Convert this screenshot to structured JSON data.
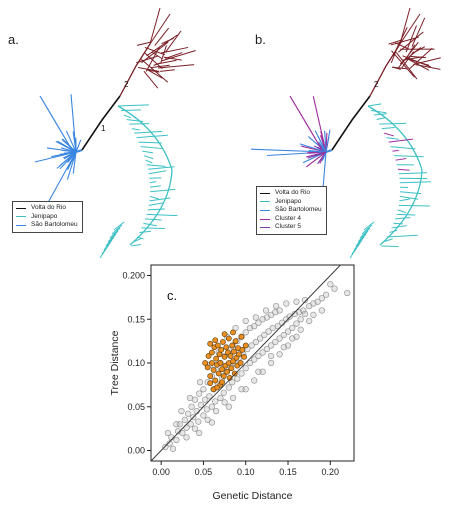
{
  "colors": {
    "volta": "#111111",
    "jenipapo": "#3cc0c4",
    "sao": "#3a86e0",
    "cluster4": "#a02d9c",
    "cluster5": "#7b3aa8",
    "maroon": "#7a1f26",
    "points_gray": "#b9b9b9",
    "points_orange": "#e98a17"
  },
  "panel_a": {
    "label": "a.",
    "node_labels": [
      "1",
      "2"
    ],
    "legend": [
      {
        "label": "Volta do Rio",
        "color_key": "volta"
      },
      {
        "label": "Jenipapo",
        "color_key": "jenipapo"
      },
      {
        "label": "São Bartolomeu",
        "color_key": "sao"
      }
    ]
  },
  "panel_b": {
    "label": "b.",
    "node_labels": [
      "2"
    ],
    "legend": [
      {
        "label": "Volta do Rio",
        "color_key": "volta"
      },
      {
        "label": "Jenipapo",
        "color_key": "jenipapo"
      },
      {
        "label": "São Bartolomeu",
        "color_key": "sao"
      },
      {
        "label": "Cluster 4",
        "color_key": "cluster4"
      },
      {
        "label": "Cluster 5",
        "color_key": "cluster5"
      }
    ]
  },
  "chart_data": {
    "type": "scatter",
    "panel_label": "c.",
    "xlabel": "Genetic Distance",
    "ylabel": "Tree Distance",
    "xlim": [
      -0.012,
      0.228
    ],
    "ylim": [
      -0.012,
      0.212
    ],
    "x_ticks": [
      "0.00",
      "0.05",
      "0.10",
      "0.15",
      "0.20"
    ],
    "y_ticks": [
      "0.00",
      "0.05",
      "0.10",
      "0.15",
      "0.200"
    ],
    "x_tick_values": [
      0,
      0.05,
      0.1,
      0.15,
      0.2
    ],
    "y_tick_values": [
      0,
      0.05,
      0.1,
      0.15,
      0.2
    ],
    "reference_line": {
      "x": [
        -0.012,
        0.212
      ],
      "y": [
        -0.012,
        0.212
      ]
    },
    "grid": false,
    "series": [
      {
        "color_key": "points_gray",
        "points": [
          [
            0.005,
            0.004
          ],
          [
            0.01,
            0.008
          ],
          [
            0.012,
            0.015
          ],
          [
            0.018,
            0.012
          ],
          [
            0.02,
            0.022
          ],
          [
            0.022,
            0.03
          ],
          [
            0.025,
            0.02
          ],
          [
            0.028,
            0.035
          ],
          [
            0.03,
            0.026
          ],
          [
            0.032,
            0.042
          ],
          [
            0.035,
            0.03
          ],
          [
            0.036,
            0.05
          ],
          [
            0.038,
            0.038
          ],
          [
            0.04,
            0.058
          ],
          [
            0.042,
            0.045
          ],
          [
            0.044,
            0.033
          ],
          [
            0.045,
            0.065
          ],
          [
            0.047,
            0.052
          ],
          [
            0.05,
            0.04
          ],
          [
            0.05,
            0.07
          ],
          [
            0.052,
            0.058
          ],
          [
            0.054,
            0.047
          ],
          [
            0.055,
            0.078
          ],
          [
            0.057,
            0.062
          ],
          [
            0.06,
            0.05
          ],
          [
            0.06,
            0.085
          ],
          [
            0.062,
            0.07
          ],
          [
            0.064,
            0.056
          ],
          [
            0.065,
            0.092
          ],
          [
            0.067,
            0.076
          ],
          [
            0.07,
            0.06
          ],
          [
            0.07,
            0.1
          ],
          [
            0.072,
            0.082
          ],
          [
            0.074,
            0.066
          ],
          [
            0.075,
            0.108
          ],
          [
            0.077,
            0.09
          ],
          [
            0.08,
            0.072
          ],
          [
            0.08,
            0.115
          ],
          [
            0.082,
            0.096
          ],
          [
            0.084,
            0.078
          ],
          [
            0.085,
            0.12
          ],
          [
            0.087,
            0.1
          ],
          [
            0.09,
            0.082
          ],
          [
            0.09,
            0.125
          ],
          [
            0.092,
            0.106
          ],
          [
            0.095,
            0.088
          ],
          [
            0.095,
            0.13
          ],
          [
            0.097,
            0.11
          ],
          [
            0.1,
            0.094
          ],
          [
            0.1,
            0.135
          ],
          [
            0.102,
            0.116
          ],
          [
            0.105,
            0.1
          ],
          [
            0.105,
            0.14
          ],
          [
            0.107,
            0.12
          ],
          [
            0.11,
            0.104
          ],
          [
            0.11,
            0.142
          ],
          [
            0.112,
            0.124
          ],
          [
            0.115,
            0.108
          ],
          [
            0.115,
            0.146
          ],
          [
            0.117,
            0.128
          ],
          [
            0.12,
            0.112
          ],
          [
            0.12,
            0.15
          ],
          [
            0.122,
            0.132
          ],
          [
            0.125,
            0.116
          ],
          [
            0.125,
            0.152
          ],
          [
            0.127,
            0.136
          ],
          [
            0.13,
            0.12
          ],
          [
            0.13,
            0.155
          ],
          [
            0.132,
            0.14
          ],
          [
            0.135,
            0.124
          ],
          [
            0.135,
            0.158
          ],
          [
            0.138,
            0.142
          ],
          [
            0.14,
            0.128
          ],
          [
            0.14,
            0.16
          ],
          [
            0.143,
            0.146
          ],
          [
            0.145,
            0.132
          ],
          [
            0.148,
            0.15
          ],
          [
            0.15,
            0.136
          ],
          [
            0.152,
            0.153
          ],
          [
            0.155,
            0.14
          ],
          [
            0.158,
            0.156
          ],
          [
            0.16,
            0.145
          ],
          [
            0.163,
            0.158
          ],
          [
            0.165,
            0.15
          ],
          [
            0.168,
            0.16
          ],
          [
            0.17,
            0.156
          ],
          [
            0.175,
            0.165
          ],
          [
            0.18,
            0.168
          ],
          [
            0.185,
            0.17
          ],
          [
            0.19,
            0.174
          ],
          [
            0.195,
            0.178
          ],
          [
            0.205,
            0.185
          ],
          [
            0.22,
            0.18
          ],
          [
            0.2,
            0.19
          ],
          [
            0.018,
            0.03
          ],
          [
            0.03,
            0.015
          ],
          [
            0.04,
            0.025
          ],
          [
            0.055,
            0.035
          ],
          [
            0.065,
            0.045
          ],
          [
            0.075,
            0.055
          ],
          [
            0.085,
            0.06
          ],
          [
            0.095,
            0.07
          ],
          [
            0.11,
            0.08
          ],
          [
            0.12,
            0.09
          ],
          [
            0.13,
            0.1
          ],
          [
            0.14,
            0.11
          ],
          [
            0.15,
            0.12
          ],
          [
            0.16,
            0.13
          ],
          [
            0.008,
            0.02
          ],
          [
            0.014,
            0.002
          ],
          [
            0.024,
            0.045
          ],
          [
            0.034,
            0.06
          ],
          [
            0.046,
            0.078
          ],
          [
            0.058,
            0.098
          ],
          [
            0.068,
            0.112
          ],
          [
            0.078,
            0.13
          ],
          [
            0.088,
            0.14
          ],
          [
            0.1,
            0.148
          ],
          [
            0.112,
            0.152
          ],
          [
            0.124,
            0.16
          ],
          [
            0.136,
            0.165
          ],
          [
            0.148,
            0.168
          ],
          [
            0.16,
            0.17
          ],
          [
            0.17,
            0.172
          ],
          [
            0.045,
            0.02
          ],
          [
            0.06,
            0.032
          ],
          [
            0.08,
            0.05
          ],
          [
            0.1,
            0.07
          ],
          [
            0.115,
            0.09
          ],
          [
            0.13,
            0.108
          ],
          [
            0.145,
            0.118
          ],
          [
            0.155,
            0.128
          ],
          [
            0.165,
            0.138
          ],
          [
            0.175,
            0.148
          ],
          [
            0.18,
            0.155
          ],
          [
            0.19,
            0.16
          ]
        ]
      },
      {
        "color_key": "points_orange",
        "points": [
          [
            0.052,
            0.1
          ],
          [
            0.055,
            0.095
          ],
          [
            0.056,
            0.108
          ],
          [
            0.058,
            0.085
          ],
          [
            0.06,
            0.1
          ],
          [
            0.06,
            0.112
          ],
          [
            0.062,
            0.092
          ],
          [
            0.063,
            0.118
          ],
          [
            0.064,
            0.08
          ],
          [
            0.065,
            0.105
          ],
          [
            0.066,
            0.098
          ],
          [
            0.067,
            0.12
          ],
          [
            0.068,
            0.088
          ],
          [
            0.069,
            0.11
          ],
          [
            0.07,
            0.075
          ],
          [
            0.07,
            0.1
          ],
          [
            0.071,
            0.115
          ],
          [
            0.072,
            0.093
          ],
          [
            0.073,
            0.124
          ],
          [
            0.074,
            0.085
          ],
          [
            0.075,
            0.107
          ],
          [
            0.076,
            0.097
          ],
          [
            0.077,
            0.118
          ],
          [
            0.078,
            0.09
          ],
          [
            0.079,
            0.112
          ],
          [
            0.08,
            0.1
          ],
          [
            0.08,
            0.128
          ],
          [
            0.081,
            0.083
          ],
          [
            0.082,
            0.108
          ],
          [
            0.083,
            0.094
          ],
          [
            0.084,
            0.12
          ],
          [
            0.085,
            0.102
          ],
          [
            0.086,
            0.113
          ],
          [
            0.087,
            0.088
          ],
          [
            0.088,
            0.125
          ],
          [
            0.089,
            0.106
          ],
          [
            0.09,
            0.097
          ],
          [
            0.091,
            0.117
          ],
          [
            0.092,
            0.11
          ],
          [
            0.094,
            0.1
          ],
          [
            0.095,
            0.13
          ],
          [
            0.096,
            0.115
          ],
          [
            0.098,
            0.107
          ],
          [
            0.1,
            0.12
          ],
          [
            0.058,
            0.077
          ],
          [
            0.062,
            0.07
          ],
          [
            0.066,
            0.072
          ],
          [
            0.072,
            0.078
          ],
          [
            0.058,
            0.122
          ],
          [
            0.064,
            0.126
          ],
          [
            0.075,
            0.133
          ],
          [
            0.085,
            0.135
          ]
        ]
      }
    ]
  }
}
